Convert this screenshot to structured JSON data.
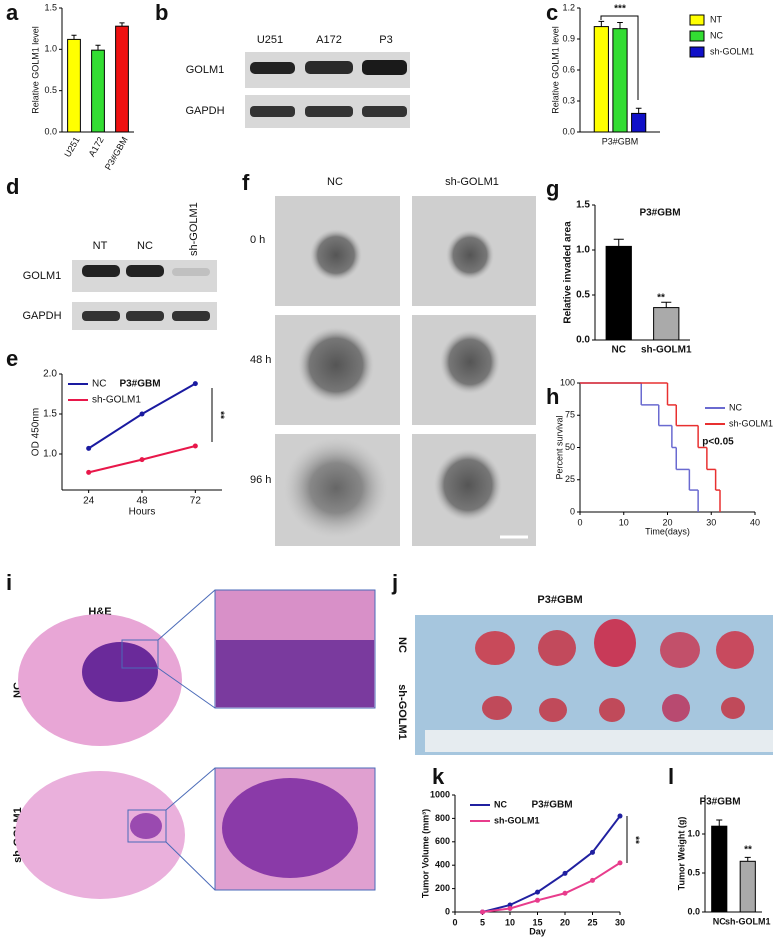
{
  "chart_data": [
    {
      "type": "bar",
      "label": "a",
      "ylabel": "Relative GOLM1 level",
      "categories": [
        "U251",
        "A172",
        "P3#GBM"
      ],
      "values": [
        1.12,
        0.99,
        1.28
      ],
      "errors": [
        0.05,
        0.06,
        0.04
      ],
      "colors": [
        "#ffff00",
        "#33dd33",
        "#ee1111"
      ],
      "ylim": [
        0,
        1.5
      ],
      "yticks": [
        {
          "value": 0,
          "label": "0.0"
        },
        0.5,
        {
          "value": 1,
          "label": "1.0"
        },
        1.5
      ]
    },
    {
      "type": "bar",
      "label": "c",
      "ylabel": "Relative GOLM1 level",
      "categories": [
        "P3#GBM"
      ],
      "series": [
        {
          "name": "NT",
          "color": "#ffff00",
          "values": [
            1.02
          ],
          "errors": [
            0.05
          ]
        },
        {
          "name": "NC",
          "color": "#33dd33",
          "values": [
            1.0
          ],
          "errors": [
            0.06
          ]
        },
        {
          "name": "sh-GOLM1",
          "color": "#1010c8",
          "values": [
            0.18
          ],
          "errors": [
            0.05
          ]
        }
      ],
      "ylim": [
        0,
        1.2
      ],
      "yticks": [
        {
          "value": 0,
          "label": "0.0"
        },
        {
          "value": 0.3,
          "label": "0.3"
        },
        {
          "value": 0.6,
          "label": "0.6"
        },
        {
          "value": 0.9,
          "label": "0.9"
        },
        {
          "value": 1.2,
          "label": "1.2"
        }
      ],
      "annotations": [
        "***"
      ]
    },
    {
      "type": "line",
      "label": "e",
      "ylabel": "OD 450nm",
      "xlabel": "Hours",
      "x": [
        24,
        48,
        72
      ],
      "series": [
        {
          "name": "NC",
          "color": "#1a1aa0",
          "values": [
            1.07,
            1.5,
            1.88
          ]
        },
        {
          "name": "sh-GOLM1",
          "color": "#e8174a",
          "values": [
            0.77,
            0.93,
            1.1
          ]
        }
      ],
      "xlim": [
        12,
        84
      ],
      "xticks": [
        24,
        48,
        72
      ],
      "ylim": [
        0.55,
        2.0
      ],
      "yticks": [
        {
          "value": 1,
          "label": "1.0"
        },
        1.5,
        {
          "value": 2,
          "label": "2.0"
        }
      ],
      "annotations": [
        "P3#GBM",
        "**"
      ]
    },
    {
      "type": "bar",
      "label": "g",
      "ylabel": "Relative invaded area",
      "categories": [
        "NC",
        "sh-GOLM1"
      ],
      "values": [
        1.04,
        0.36
      ],
      "errors": [
        0.08,
        0.06
      ],
      "colors": [
        "#000000",
        "#aaaaaa"
      ],
      "ylim": [
        0,
        1.5
      ],
      "yticks": [
        {
          "value": 0,
          "label": "0.0"
        },
        0.5,
        {
          "value": 1,
          "label": "1.0"
        },
        1.5
      ],
      "annotations": [
        "P3#GBM",
        "**"
      ]
    },
    {
      "type": "step",
      "label": "h",
      "ylabel": "Percent survival",
      "xlabel": "Time(days)",
      "series": [
        {
          "name": "NC",
          "color": "#6a6ad0",
          "x": [
            0,
            14,
            18,
            21,
            22,
            25,
            27
          ],
          "values": [
            100,
            83,
            67,
            50,
            33,
            17,
            0
          ]
        },
        {
          "name": "sh-GOLM1",
          "color": "#e83030",
          "x": [
            0,
            20,
            22,
            27,
            29,
            31,
            32
          ],
          "values": [
            100,
            83,
            67,
            50,
            33,
            17,
            0
          ]
        }
      ],
      "xlim": [
        0,
        40
      ],
      "xticks": [
        0,
        10,
        20,
        30,
        40
      ],
      "ylim": [
        0,
        100
      ],
      "yticks": [
        0,
        25,
        50,
        75,
        100
      ],
      "annotations": [
        "p<0.05"
      ]
    },
    {
      "type": "line",
      "label": "k",
      "ylabel": "Tumor Volume (mm³)",
      "xlabel": "Day",
      "x": [
        5,
        10,
        15,
        20,
        25,
        30
      ],
      "series": [
        {
          "name": "NC",
          "color": "#2020a0",
          "values": [
            0,
            60,
            170,
            330,
            510,
            820
          ]
        },
        {
          "name": "sh-GOLM1",
          "color": "#e83c8c",
          "values": [
            0,
            30,
            100,
            160,
            270,
            420
          ]
        }
      ],
      "xlim": [
        0,
        30
      ],
      "xticks": [
        0,
        5,
        10,
        15,
        20,
        25,
        30
      ],
      "ylim": [
        0,
        1000
      ],
      "yticks": [
        0,
        200,
        400,
        600,
        800,
        1000
      ],
      "annotations": [
        "P3#GBM",
        "**"
      ]
    },
    {
      "type": "bar",
      "label": "l",
      "ylabel": "Tumor Weight (g)",
      "categories": [
        "NC",
        "sh-GOLM1"
      ],
      "values": [
        1.1,
        0.65
      ],
      "errors": [
        0.08,
        0.05
      ],
      "colors": [
        "#000000",
        "#aaaaaa"
      ],
      "ylim": [
        0,
        1.5
      ],
      "yticks": [
        {
          "value": 0,
          "label": "0.0"
        },
        0.5,
        {
          "value": 1,
          "label": "1.0"
        }
      ],
      "annotations": [
        "P3#GBM",
        "**"
      ]
    }
  ],
  "figure": {
    "b": {
      "label": "b",
      "lanes": [
        "U251",
        "A172",
        "P3"
      ],
      "rows": [
        "GOLM1",
        "GAPDH"
      ]
    },
    "d": {
      "label": "d",
      "lanes": [
        "NT",
        "NC",
        "sh-GOLM1"
      ],
      "rows": [
        "GOLM1",
        "GAPDH"
      ]
    },
    "f": {
      "label": "f",
      "columns": [
        "NC",
        "sh-GOLM1"
      ],
      "rows": [
        "0 h",
        "48 h",
        "96 h"
      ]
    },
    "i": {
      "label": "i",
      "title": "H&E",
      "rows": [
        "NC",
        "sh-GOLM1"
      ]
    },
    "j": {
      "label": "j",
      "title": "P3#GBM",
      "rows": [
        "NC",
        "sh-GOLM1"
      ]
    }
  }
}
